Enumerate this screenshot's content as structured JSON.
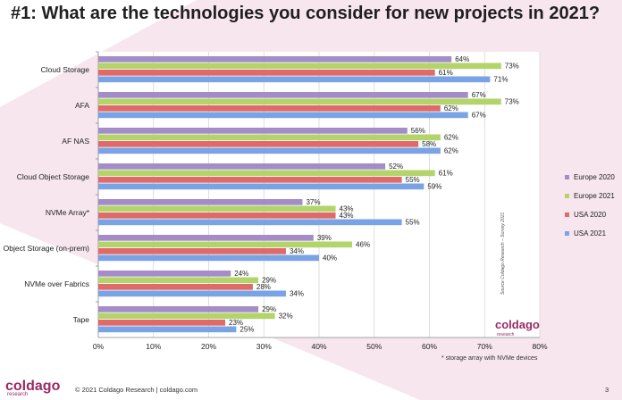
{
  "title": "#1: What are the technologies you consider for new projects in 2021?",
  "chart_data": {
    "type": "bar",
    "orientation": "horizontal",
    "categories": [
      "Cloud Storage",
      "AFA",
      "AF NAS",
      "Cloud Object Storage",
      "NVMe Array*",
      "Object Storage (on-prem)",
      "NVMe over Fabrics",
      "Tape"
    ],
    "series": [
      {
        "name": "Europe 2020",
        "color": "#a48cc8",
        "values": [
          64,
          67,
          56,
          52,
          37,
          39,
          24,
          29
        ],
        "labels": [
          "64%",
          "67%",
          "56%",
          "52%",
          "37%",
          "39%",
          "24%",
          "29%"
        ]
      },
      {
        "name": "Europe 2021",
        "color": "#b2d46a",
        "values": [
          73,
          73,
          62,
          61,
          43,
          46,
          29,
          32
        ],
        "labels": [
          "73%",
          "73%",
          "62%",
          "61%",
          "43%",
          "46%",
          "29%",
          "32%"
        ]
      },
      {
        "name": "USA 2020",
        "color": "#e06a6a",
        "values": [
          61,
          62,
          58,
          55,
          43,
          34,
          28,
          23
        ],
        "labels": [
          "61%",
          "62%",
          "58%",
          "55%",
          "43%",
          "34%",
          "28%",
          "23%"
        ]
      },
      {
        "name": "USA 2021",
        "color": "#7aa3e6",
        "values": [
          71,
          67,
          62,
          59,
          55,
          40,
          34,
          25
        ],
        "labels": [
          "71%",
          "67%",
          "62%",
          "59%",
          "55%",
          "40%",
          "34%",
          "25%"
        ]
      }
    ],
    "xlim": [
      0,
      80
    ],
    "ticks": [
      "0%",
      "10%",
      "20%",
      "30%",
      "40%",
      "50%",
      "60%",
      "70%",
      "80%"
    ],
    "grid": true,
    "legend_position": "right"
  },
  "legend": [
    "Europe 2020",
    "Europe 2021",
    "USA 2020",
    "USA 2021"
  ],
  "footnote": "* storage array with NVMe devices",
  "source_text": "Source Coldago Research – Survey 2021",
  "chart_logo": {
    "name": "coldago",
    "sub": "research"
  },
  "footer": {
    "logo": "coldago",
    "logo_sub": "research",
    "copyright": "© 2021 Coldago Research | coldago.com",
    "page": "3"
  },
  "colors": {
    "brand": "#9a2a64",
    "bg_pink": "#f5e3ec"
  }
}
